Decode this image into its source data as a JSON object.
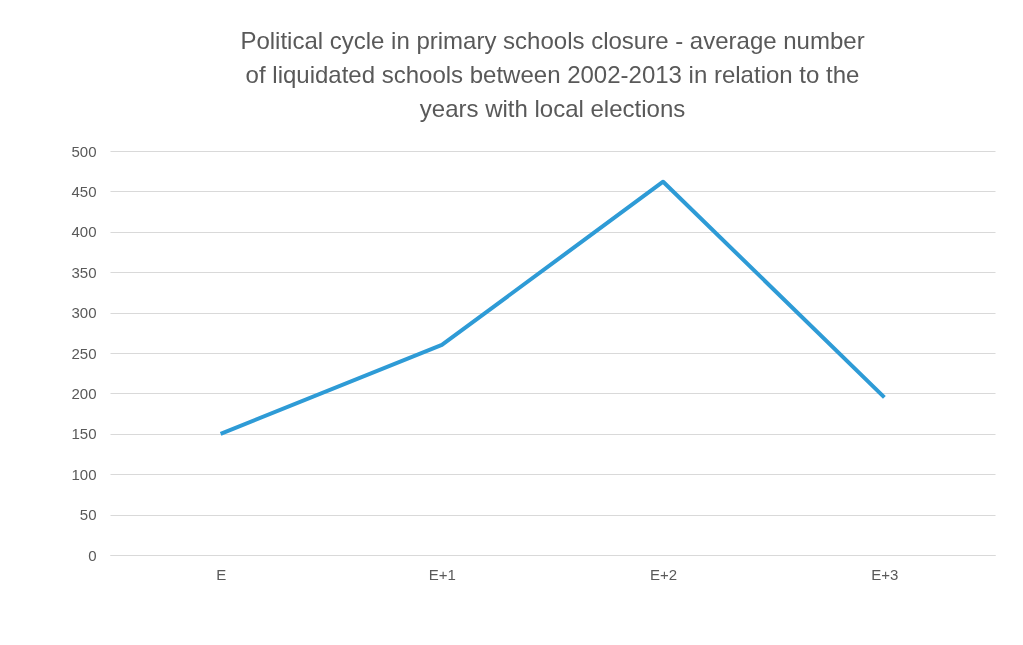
{
  "chart_data": {
    "type": "line",
    "title": "Political cycle in primary schools closure - average number of liquidated schools between 2002-2013 in relation to the years with local elections",
    "categories": [
      "E",
      "E+1",
      "E+2",
      "E+3"
    ],
    "series": [
      {
        "color": "#2e9bd6",
        "values": [
          150,
          260,
          462,
          195
        ]
      }
    ],
    "ylim": [
      0,
      500
    ],
    "yticks": [
      0,
      50,
      100,
      150,
      200,
      250,
      300,
      350,
      400,
      450,
      500
    ],
    "grid": "y",
    "marker": "none",
    "line_style": "solid"
  }
}
